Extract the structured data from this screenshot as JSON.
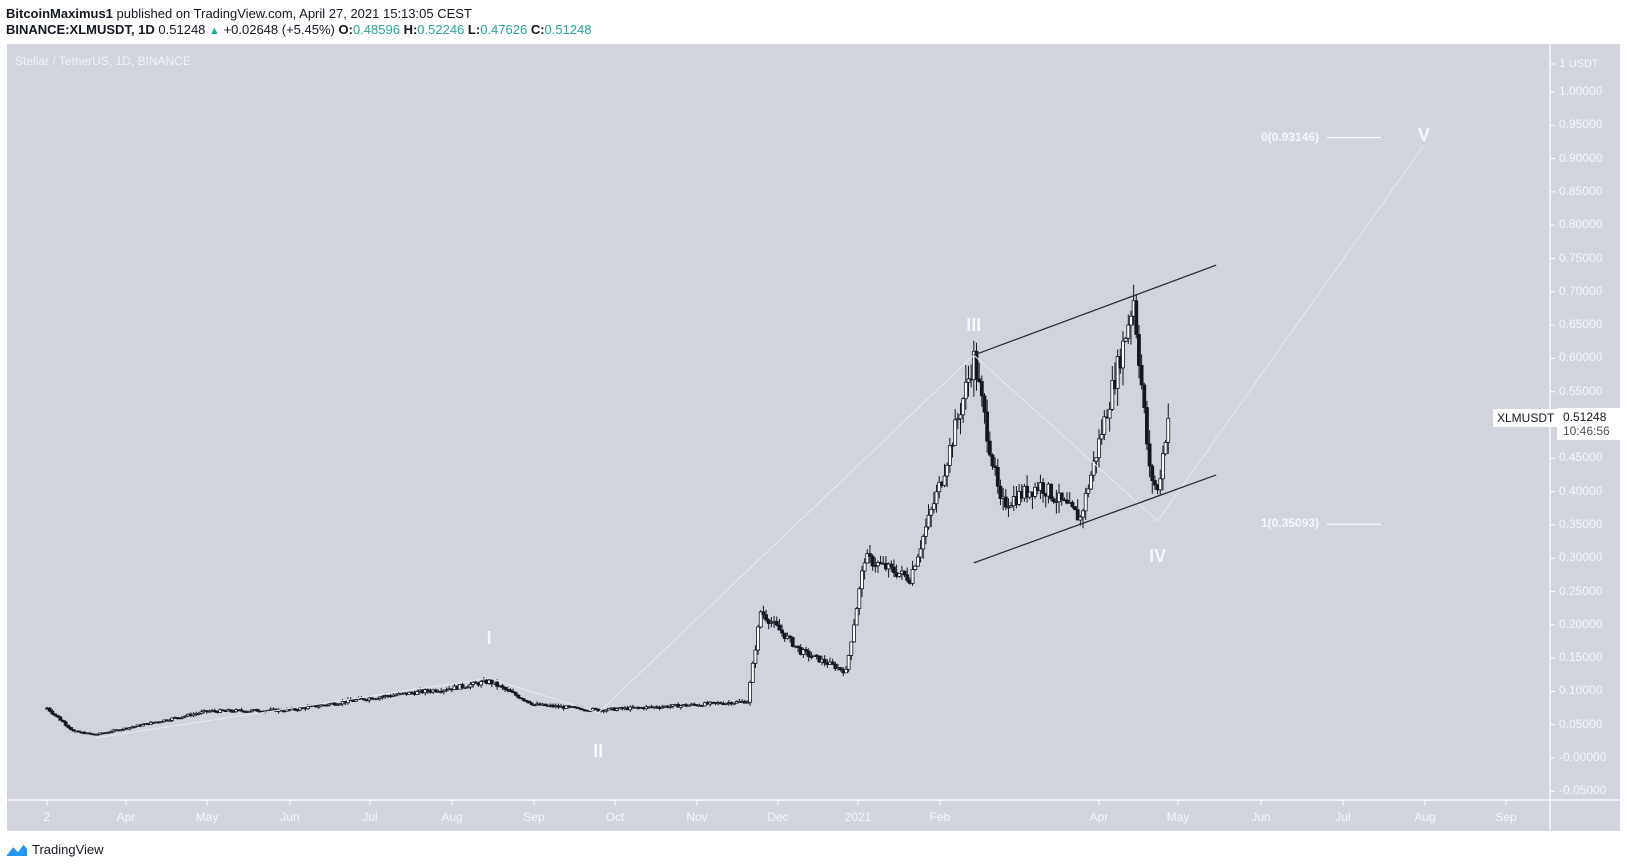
{
  "header": {
    "author": "BitcoinMaximus1",
    "published_text": "published on TradingView.com, April 27, 2021 15:13:05 CEST",
    "symbol": "BINANCE:XLMUSDT, 1D",
    "last": "0.51248",
    "change": "+0.02648 (+5.45%)",
    "o_label": "O:",
    "o": "0.48596",
    "h_label": "H:",
    "h": "0.52246",
    "l_label": "L:",
    "l": "0.47626",
    "c_label": "C:",
    "c": "0.51248"
  },
  "chart_title": "Stellar / TetherUS, 1D, BINANCE",
  "price_tag": {
    "symbol": "XLMUSDT",
    "price": "0.51248",
    "countdown": "10:46:56"
  },
  "footer": {
    "brand": "TradingView"
  },
  "colors": {
    "pane": "#d1d4dc",
    "candle_outline": "#131722",
    "up_body": "#ffffff",
    "down_body": "#131722",
    "green": "#26a69a",
    "wave_lines": "#e8e9ee",
    "channel": "#2a2e39"
  },
  "chart_data": {
    "type": "candlestick",
    "title": "Stellar / TetherUS, 1D, BINANCE",
    "ylabel": "USDT",
    "ylim": [
      -0.06,
      1.02
    ],
    "y_ticks": [
      "1",
      "1.00000",
      "0.95000",
      "0.90000",
      "0.85000",
      "0.80000",
      "0.75000",
      "0.70000",
      "0.65000",
      "0.60000",
      "0.55000",
      "0.50000",
      "0.45000",
      "0.40000",
      "0.35000",
      "0.30000",
      "0.25000",
      "0.20000",
      "0.15000",
      "0.10000",
      "0.05000",
      "-0.00000",
      "-0.05000"
    ],
    "x_ticks": [
      "2",
      "Apr",
      "May",
      "Jun",
      "Jul",
      "Aug",
      "Sep",
      "Oct",
      "Nov",
      "Dec",
      "2021",
      "Feb",
      "Apr",
      "May",
      "Jun",
      "Jul",
      "Aug",
      "Sep"
    ],
    "series_close_approx": [
      {
        "date": "2020-03-02",
        "close": 0.075
      },
      {
        "date": "2020-03-12",
        "close": 0.04
      },
      {
        "date": "2020-03-20",
        "close": 0.035
      },
      {
        "date": "2020-04-01",
        "close": 0.045
      },
      {
        "date": "2020-05-01",
        "close": 0.07
      },
      {
        "date": "2020-06-01",
        "close": 0.072
      },
      {
        "date": "2020-07-01",
        "close": 0.09
      },
      {
        "date": "2020-08-01",
        "close": 0.105
      },
      {
        "date": "2020-08-15",
        "close": 0.115
      },
      {
        "date": "2020-09-01",
        "close": 0.08
      },
      {
        "date": "2020-09-25",
        "close": 0.072
      },
      {
        "date": "2020-11-01",
        "close": 0.08
      },
      {
        "date": "2020-11-20",
        "close": 0.085
      },
      {
        "date": "2020-11-25",
        "close": 0.22
      },
      {
        "date": "2020-12-10",
        "close": 0.16
      },
      {
        "date": "2020-12-27",
        "close": 0.13
      },
      {
        "date": "2021-01-03",
        "close": 0.3
      },
      {
        "date": "2021-01-20",
        "close": 0.27
      },
      {
        "date": "2021-02-01",
        "close": 0.42
      },
      {
        "date": "2021-02-13",
        "close": 0.6
      },
      {
        "date": "2021-02-23",
        "close": 0.38
      },
      {
        "date": "2021-03-10",
        "close": 0.41
      },
      {
        "date": "2021-03-25",
        "close": 0.36
      },
      {
        "date": "2021-04-10",
        "close": 0.62
      },
      {
        "date": "2021-04-14",
        "close": 0.69
      },
      {
        "date": "2021-04-20",
        "close": 0.43
      },
      {
        "date": "2021-04-23",
        "close": 0.4
      },
      {
        "date": "2021-04-27",
        "close": 0.51248
      }
    ],
    "annotations": {
      "elliott_waves": [
        {
          "label": "I",
          "date": "2020-08-15",
          "price": 0.12
        },
        {
          "label": "II",
          "date": "2020-09-25",
          "price": 0.068
        },
        {
          "label": "III",
          "date": "2021-02-13",
          "price": 0.605
        },
        {
          "label": "IV",
          "date": "2021-04-23",
          "price": 0.356
        },
        {
          "label": "V",
          "date": "2021-08-01",
          "price": 0.92
        }
      ],
      "fib_levels": [
        {
          "label": "0(0.93146)",
          "value": 0.93146
        },
        {
          "label": "1(0.35093)",
          "value": 0.35093
        }
      ],
      "ascending_channel": {
        "upper": [
          {
            "date": "2021-02-13",
            "price": 0.605
          },
          {
            "date": "2021-05-15",
            "price": 0.74
          }
        ],
        "lower": [
          {
            "date": "2021-02-13",
            "price": 0.293
          },
          {
            "date": "2021-05-15",
            "price": 0.425
          }
        ]
      }
    },
    "last_value": 0.51248
  }
}
